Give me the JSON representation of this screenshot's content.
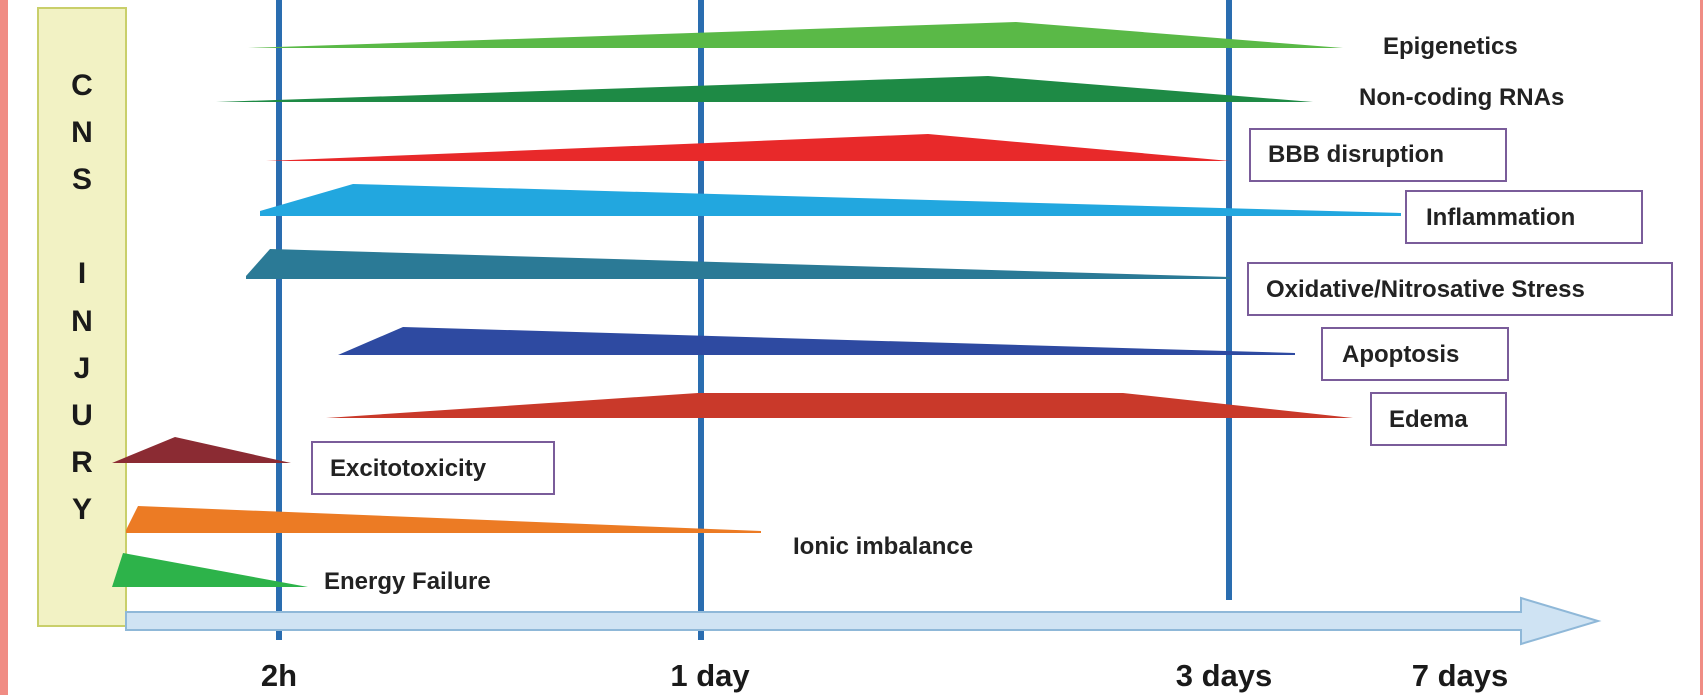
{
  "cns_injury_letters": [
    "C",
    "N",
    "S",
    "I",
    "N",
    "J",
    "U",
    "R",
    "Y"
  ],
  "time_ticks": [
    "2h",
    "1 day",
    "3 days",
    "7 days"
  ],
  "processes": [
    {
      "label": "Epigenetics",
      "color": "#5ab947",
      "boxed": false
    },
    {
      "label": "Non-coding RNAs",
      "color": "#1e8a45",
      "boxed": false
    },
    {
      "label": "BBB disruption",
      "color": "#e8292a",
      "boxed": true
    },
    {
      "label": "Inflammation",
      "color": "#22a7df",
      "boxed": true
    },
    {
      "label": "Oxidative/Nitrosative Stress",
      "color": "#2b7a96",
      "boxed": true
    },
    {
      "label": "Apoptosis",
      "color": "#2e4aa1",
      "boxed": true
    },
    {
      "label": "Edema",
      "color": "#c9392a",
      "boxed": true
    },
    {
      "label": "Excitotoxicity",
      "color": "#8b2b33",
      "boxed": true
    },
    {
      "label": "Ionic imbalance",
      "color": "#ec7b24",
      "boxed": false
    },
    {
      "label": "Energy Failure",
      "color": "#2db34a",
      "boxed": false
    }
  ],
  "colors": {
    "frame": "#f08c84",
    "injury_panel": "#f2f2c4",
    "injury_panel_border": "#c9cf6a",
    "timeline_lines": "#2a6db0",
    "arrow_fill": "#cfe3f3",
    "arrow_stroke": "#8fb8d8",
    "label_box_border": "#7a5c9a"
  }
}
